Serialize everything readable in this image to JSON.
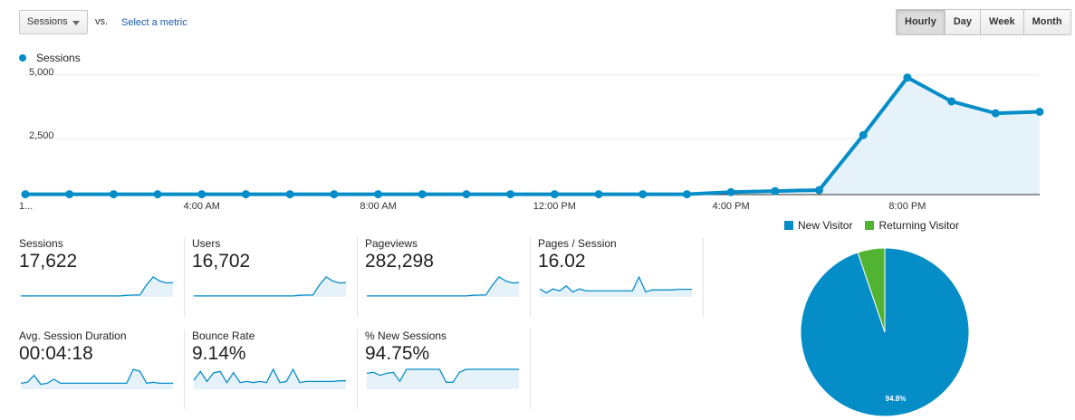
{
  "controls": {
    "metric": "Sessions",
    "vs": "vs.",
    "select_metric": "Select a metric",
    "ranges": [
      "Hourly",
      "Day",
      "Week",
      "Month"
    ],
    "active_range": "Hourly"
  },
  "chart_data": [
    {
      "type": "area",
      "legend": [
        "Sessions"
      ],
      "color": "#058dc7",
      "ylim": [
        0,
        5000
      ],
      "yticks": [
        2500,
        5000
      ],
      "ytick_labels": [
        "2,500",
        "5,000"
      ],
      "x_tick_labels": [
        "1...",
        "4:00 AM",
        "8:00 AM",
        "12:00 PM",
        "4:00 PM",
        "8:00 PM"
      ],
      "x_tick_hours": [
        0,
        4,
        8,
        12,
        16,
        20
      ],
      "x": [
        0,
        1,
        2,
        3,
        4,
        5,
        6,
        7,
        8,
        9,
        10,
        11,
        12,
        13,
        14,
        15,
        16,
        17,
        18,
        19,
        20,
        21,
        22,
        23
      ],
      "series": [
        {
          "name": "Sessions",
          "values": [
            15,
            15,
            15,
            15,
            15,
            15,
            15,
            15,
            15,
            15,
            15,
            15,
            15,
            15,
            15,
            15,
            100,
            140,
            180,
            2350,
            4620,
            3680,
            3210,
            3270
          ]
        }
      ],
      "grid": true
    },
    {
      "type": "pie",
      "legend": [
        "New Visitor",
        "Returning Visitor"
      ],
      "slices": [
        {
          "label": "New Visitor",
          "value": 94.8,
          "color": "#058dc7",
          "data_label": "94.8%"
        },
        {
          "label": "Returning Visitor",
          "value": 5.2,
          "color": "#50b432"
        }
      ]
    }
  ],
  "scorecards": [
    {
      "label": "Sessions",
      "value": "17,622",
      "spark": [
        5,
        5,
        5,
        5,
        5,
        5,
        5,
        5,
        5,
        5,
        5,
        5,
        5,
        5,
        5,
        5,
        8,
        9,
        10,
        60,
        100,
        80,
        70,
        72
      ]
    },
    {
      "label": "Users",
      "value": "16,702",
      "spark": [
        5,
        5,
        5,
        5,
        5,
        5,
        5,
        5,
        5,
        5,
        5,
        5,
        5,
        5,
        5,
        5,
        8,
        9,
        10,
        60,
        100,
        80,
        70,
        72
      ]
    },
    {
      "label": "Pageviews",
      "value": "282,298",
      "spark": [
        5,
        5,
        5,
        5,
        5,
        5,
        5,
        5,
        5,
        5,
        5,
        5,
        5,
        5,
        5,
        5,
        8,
        9,
        10,
        60,
        100,
        80,
        70,
        72
      ]
    },
    {
      "label": "Pages / Session",
      "value": "16.02",
      "spark": [
        40,
        20,
        40,
        30,
        55,
        25,
        40,
        30,
        30,
        30,
        30,
        30,
        30,
        30,
        30,
        100,
        25,
        35,
        35,
        35,
        35,
        38,
        38,
        38
      ]
    },
    {
      "label": "Avg. Session Duration",
      "value": "00:04:18",
      "spark": [
        30,
        35,
        70,
        25,
        30,
        50,
        30,
        30,
        30,
        30,
        30,
        30,
        30,
        30,
        30,
        30,
        30,
        100,
        90,
        30,
        35,
        30,
        30,
        30
      ]
    },
    {
      "label": "Bounce Rate",
      "value": "9.14%",
      "spark": [
        40,
        80,
        35,
        75,
        80,
        30,
        75,
        30,
        35,
        30,
        35,
        30,
        90,
        30,
        35,
        90,
        30,
        35,
        35,
        35,
        35,
        35,
        38,
        38
      ]
    },
    {
      "label": "% New Sessions",
      "value": "94.75%",
      "spark": [
        80,
        85,
        70,
        80,
        85,
        40,
        100,
        100,
        100,
        100,
        100,
        100,
        35,
        35,
        85,
        100,
        100,
        100,
        100,
        100,
        100,
        100,
        100,
        100
      ]
    }
  ]
}
